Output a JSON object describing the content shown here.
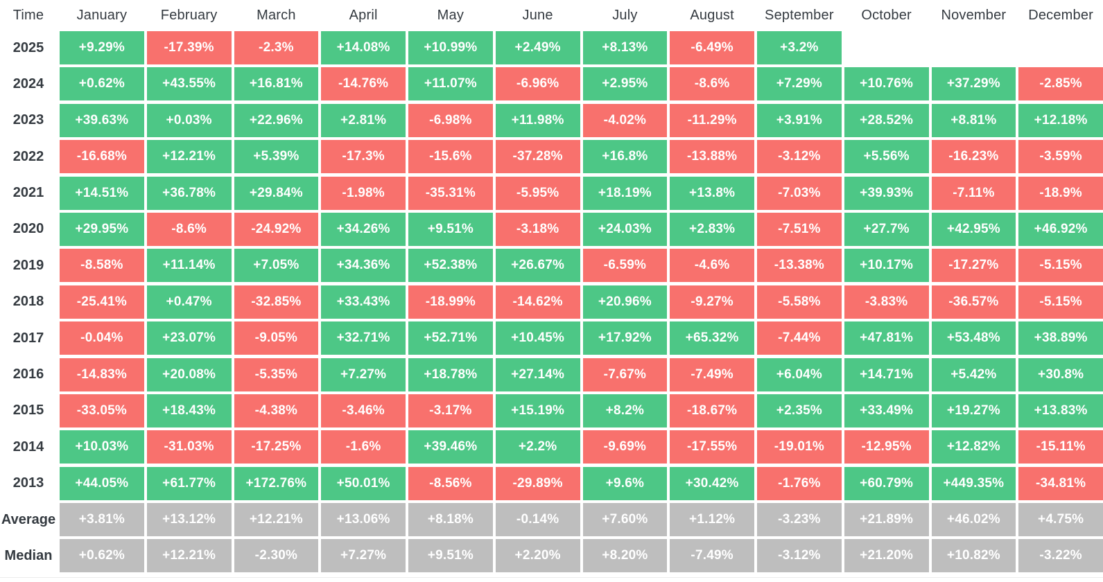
{
  "table": {
    "corner_label": "Time",
    "columns": [
      "January",
      "February",
      "March",
      "April",
      "May",
      "June",
      "July",
      "August",
      "September",
      "October",
      "November",
      "December"
    ],
    "rows": [
      {
        "label": "2025",
        "type": "year",
        "values": [
          "+9.29%",
          "-17.39%",
          "-2.3%",
          "+14.08%",
          "+10.99%",
          "+2.49%",
          "+8.13%",
          "-6.49%",
          "+3.2%",
          "",
          "",
          ""
        ]
      },
      {
        "label": "2024",
        "type": "year",
        "values": [
          "+0.62%",
          "+43.55%",
          "+16.81%",
          "-14.76%",
          "+11.07%",
          "-6.96%",
          "+2.95%",
          "-8.6%",
          "+7.29%",
          "+10.76%",
          "+37.29%",
          "-2.85%"
        ]
      },
      {
        "label": "2023",
        "type": "year",
        "values": [
          "+39.63%",
          "+0.03%",
          "+22.96%",
          "+2.81%",
          "-6.98%",
          "+11.98%",
          "-4.02%",
          "-11.29%",
          "+3.91%",
          "+28.52%",
          "+8.81%",
          "+12.18%"
        ]
      },
      {
        "label": "2022",
        "type": "year",
        "values": [
          "-16.68%",
          "+12.21%",
          "+5.39%",
          "-17.3%",
          "-15.6%",
          "-37.28%",
          "+16.8%",
          "-13.88%",
          "-3.12%",
          "+5.56%",
          "-16.23%",
          "-3.59%"
        ]
      },
      {
        "label": "2021",
        "type": "year",
        "values": [
          "+14.51%",
          "+36.78%",
          "+29.84%",
          "-1.98%",
          "-35.31%",
          "-5.95%",
          "+18.19%",
          "+13.8%",
          "-7.03%",
          "+39.93%",
          "-7.11%",
          "-18.9%"
        ]
      },
      {
        "label": "2020",
        "type": "year",
        "values": [
          "+29.95%",
          "-8.6%",
          "-24.92%",
          "+34.26%",
          "+9.51%",
          "-3.18%",
          "+24.03%",
          "+2.83%",
          "-7.51%",
          "+27.7%",
          "+42.95%",
          "+46.92%"
        ]
      },
      {
        "label": "2019",
        "type": "year",
        "values": [
          "-8.58%",
          "+11.14%",
          "+7.05%",
          "+34.36%",
          "+52.38%",
          "+26.67%",
          "-6.59%",
          "-4.6%",
          "-13.38%",
          "+10.17%",
          "-17.27%",
          "-5.15%"
        ]
      },
      {
        "label": "2018",
        "type": "year",
        "values": [
          "-25.41%",
          "+0.47%",
          "-32.85%",
          "+33.43%",
          "-18.99%",
          "-14.62%",
          "+20.96%",
          "-9.27%",
          "-5.58%",
          "-3.83%",
          "-36.57%",
          "-5.15%"
        ]
      },
      {
        "label": "2017",
        "type": "year",
        "values": [
          "-0.04%",
          "+23.07%",
          "-9.05%",
          "+32.71%",
          "+52.71%",
          "+10.45%",
          "+17.92%",
          "+65.32%",
          "-7.44%",
          "+47.81%",
          "+53.48%",
          "+38.89%"
        ]
      },
      {
        "label": "2016",
        "type": "year",
        "values": [
          "-14.83%",
          "+20.08%",
          "-5.35%",
          "+7.27%",
          "+18.78%",
          "+27.14%",
          "-7.67%",
          "-7.49%",
          "+6.04%",
          "+14.71%",
          "+5.42%",
          "+30.8%"
        ]
      },
      {
        "label": "2015",
        "type": "year",
        "values": [
          "-33.05%",
          "+18.43%",
          "-4.38%",
          "-3.46%",
          "-3.17%",
          "+15.19%",
          "+8.2%",
          "-18.67%",
          "+2.35%",
          "+33.49%",
          "+19.27%",
          "+13.83%"
        ]
      },
      {
        "label": "2014",
        "type": "year",
        "values": [
          "+10.03%",
          "-31.03%",
          "-17.25%",
          "-1.6%",
          "+39.46%",
          "+2.2%",
          "-9.69%",
          "-17.55%",
          "-19.01%",
          "-12.95%",
          "+12.82%",
          "-15.11%"
        ]
      },
      {
        "label": "2013",
        "type": "year",
        "values": [
          "+44.05%",
          "+61.77%",
          "+172.76%",
          "+50.01%",
          "-8.56%",
          "-29.89%",
          "+9.6%",
          "+30.42%",
          "-1.76%",
          "+60.79%",
          "+449.35%",
          "-34.81%"
        ]
      },
      {
        "label": "Average",
        "type": "summary",
        "values": [
          "+3.81%",
          "+13.12%",
          "+12.21%",
          "+13.06%",
          "+8.18%",
          "-0.14%",
          "+7.60%",
          "+1.12%",
          "-3.23%",
          "+21.89%",
          "+46.02%",
          "+4.75%"
        ]
      },
      {
        "label": "Median",
        "type": "summary",
        "values": [
          "+0.62%",
          "+12.21%",
          "-2.30%",
          "+7.27%",
          "+9.51%",
          "+2.20%",
          "+8.20%",
          "-7.49%",
          "-3.12%",
          "+21.20%",
          "+10.82%",
          "-3.22%"
        ]
      }
    ]
  },
  "colors": {
    "positive": "#4dc786",
    "negative": "#f8716d",
    "summary": "#bebebe",
    "header_text": "#343a40",
    "value_text": "#ffffff"
  },
  "chart_data": {
    "type": "heatmap",
    "title": "Monthly returns (%) by year",
    "x": [
      "January",
      "February",
      "March",
      "April",
      "May",
      "June",
      "July",
      "August",
      "September",
      "October",
      "November",
      "December"
    ],
    "value_unit": "%",
    "rows": [
      {
        "name": "2025",
        "values": [
          9.29,
          -17.39,
          -2.3,
          14.08,
          10.99,
          2.49,
          8.13,
          -6.49,
          3.2,
          null,
          null,
          null
        ]
      },
      {
        "name": "2024",
        "values": [
          0.62,
          43.55,
          16.81,
          -14.76,
          11.07,
          -6.96,
          2.95,
          -8.6,
          7.29,
          10.76,
          37.29,
          -2.85
        ]
      },
      {
        "name": "2023",
        "values": [
          39.63,
          0.03,
          22.96,
          2.81,
          -6.98,
          11.98,
          -4.02,
          -11.29,
          3.91,
          28.52,
          8.81,
          12.18
        ]
      },
      {
        "name": "2022",
        "values": [
          -16.68,
          12.21,
          5.39,
          -17.3,
          -15.6,
          -37.28,
          16.8,
          -13.88,
          -3.12,
          5.56,
          -16.23,
          -3.59
        ]
      },
      {
        "name": "2021",
        "values": [
          14.51,
          36.78,
          29.84,
          -1.98,
          -35.31,
          -5.95,
          18.19,
          13.8,
          -7.03,
          39.93,
          -7.11,
          -18.9
        ]
      },
      {
        "name": "2020",
        "values": [
          29.95,
          -8.6,
          -24.92,
          34.26,
          9.51,
          -3.18,
          24.03,
          2.83,
          -7.51,
          27.7,
          42.95,
          46.92
        ]
      },
      {
        "name": "2019",
        "values": [
          -8.58,
          11.14,
          7.05,
          34.36,
          52.38,
          26.67,
          -6.59,
          -4.6,
          -13.38,
          10.17,
          -17.27,
          -5.15
        ]
      },
      {
        "name": "2018",
        "values": [
          -25.41,
          0.47,
          -32.85,
          33.43,
          -18.99,
          -14.62,
          20.96,
          -9.27,
          -5.58,
          -3.83,
          -36.57,
          -5.15
        ]
      },
      {
        "name": "2017",
        "values": [
          -0.04,
          23.07,
          -9.05,
          32.71,
          52.71,
          10.45,
          17.92,
          65.32,
          -7.44,
          47.81,
          53.48,
          38.89
        ]
      },
      {
        "name": "2016",
        "values": [
          -14.83,
          20.08,
          -5.35,
          7.27,
          18.78,
          27.14,
          -7.67,
          -7.49,
          6.04,
          14.71,
          5.42,
          30.8
        ]
      },
      {
        "name": "2015",
        "values": [
          -33.05,
          18.43,
          -4.38,
          -3.46,
          -3.17,
          15.19,
          8.2,
          -18.67,
          2.35,
          33.49,
          19.27,
          13.83
        ]
      },
      {
        "name": "2014",
        "values": [
          10.03,
          -31.03,
          -17.25,
          -1.6,
          39.46,
          2.2,
          -9.69,
          -17.55,
          -19.01,
          -12.95,
          12.82,
          -15.11
        ]
      },
      {
        "name": "2013",
        "values": [
          44.05,
          61.77,
          172.76,
          50.01,
          -8.56,
          -29.89,
          9.6,
          30.42,
          -1.76,
          60.79,
          449.35,
          -34.81
        ]
      },
      {
        "name": "Average",
        "values": [
          3.81,
          13.12,
          12.21,
          13.06,
          8.18,
          -0.14,
          7.6,
          1.12,
          -3.23,
          21.89,
          46.02,
          4.75
        ]
      },
      {
        "name": "Median",
        "values": [
          0.62,
          12.21,
          -2.3,
          7.27,
          9.51,
          2.2,
          8.2,
          -7.49,
          -3.12,
          21.2,
          10.82,
          -3.22
        ]
      }
    ],
    "layout": {
      "grid": false,
      "legend": false,
      "cell_color_rule": "green if positive, red if negative, gray for Average/Median rows"
    }
  }
}
